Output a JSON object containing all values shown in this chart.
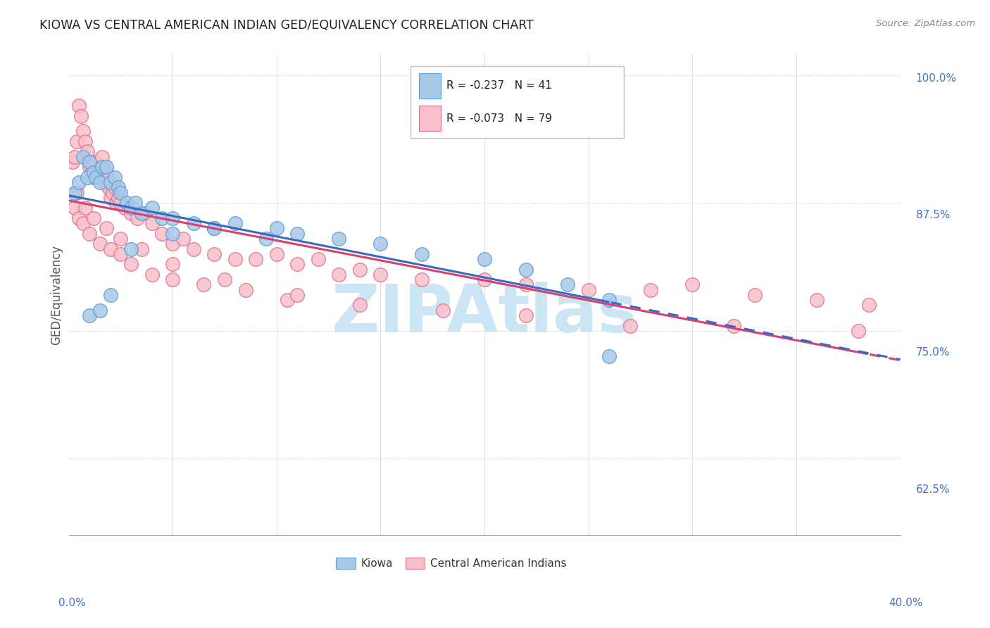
{
  "title": "KIOWA VS CENTRAL AMERICAN INDIAN GED/EQUIVALENCY CORRELATION CHART",
  "source": "Source: ZipAtlas.com",
  "legend_kiowa": "Kiowa",
  "legend_cai": "Central American Indians",
  "kiowa_r": "-0.237",
  "kiowa_n": "41",
  "cai_r": "-0.073",
  "cai_n": "79",
  "kiowa_color": "#a8c8e8",
  "kiowa_edge": "#5a9fd4",
  "cai_color": "#f9c0cb",
  "cai_edge": "#e07090",
  "kiowa_x": [
    0.3,
    0.5,
    0.7,
    0.9,
    1.0,
    1.2,
    1.3,
    1.5,
    1.6,
    1.8,
    2.0,
    2.2,
    2.4,
    2.5,
    2.8,
    3.0,
    3.2,
    3.5,
    4.0,
    4.5,
    5.0,
    6.0,
    7.0,
    8.0,
    9.5,
    11.0,
    13.0,
    15.0,
    17.0,
    20.0,
    22.0,
    24.0,
    26.0,
    1.0,
    1.5,
    2.0,
    3.0,
    5.0,
    7.0,
    10.0,
    26.0
  ],
  "kiowa_y": [
    88.5,
    89.5,
    92.0,
    90.0,
    91.5,
    90.5,
    90.0,
    89.5,
    91.0,
    91.0,
    89.5,
    90.0,
    89.0,
    88.5,
    87.5,
    87.0,
    87.5,
    86.5,
    87.0,
    86.0,
    86.0,
    85.5,
    85.0,
    85.5,
    84.0,
    84.5,
    84.0,
    83.5,
    82.5,
    82.0,
    81.0,
    79.5,
    78.0,
    76.5,
    77.0,
    78.5,
    83.0,
    84.5,
    85.0,
    85.0,
    72.5
  ],
  "cai_x": [
    0.2,
    0.3,
    0.4,
    0.5,
    0.6,
    0.7,
    0.8,
    0.9,
    1.0,
    1.1,
    1.2,
    1.3,
    1.4,
    1.5,
    1.6,
    1.7,
    1.8,
    1.9,
    2.0,
    2.1,
    2.2,
    2.3,
    2.4,
    2.5,
    2.7,
    3.0,
    3.3,
    3.6,
    4.0,
    4.5,
    5.0,
    5.5,
    6.0,
    7.0,
    8.0,
    9.0,
    10.0,
    11.0,
    12.0,
    13.0,
    14.0,
    15.0,
    17.0,
    20.0,
    22.0,
    25.0,
    28.0,
    30.0,
    33.0,
    36.0,
    38.5,
    0.3,
    0.5,
    0.7,
    1.0,
    1.5,
    2.0,
    2.5,
    3.0,
    4.0,
    5.0,
    6.5,
    8.5,
    10.5,
    14.0,
    18.0,
    22.0,
    27.0,
    32.0,
    38.0,
    0.4,
    0.8,
    1.2,
    1.8,
    2.5,
    3.5,
    5.0,
    7.5,
    11.0
  ],
  "cai_y": [
    91.5,
    92.0,
    93.5,
    97.0,
    96.0,
    94.5,
    93.5,
    92.5,
    91.0,
    90.5,
    90.0,
    91.5,
    90.0,
    91.0,
    92.0,
    89.5,
    90.5,
    89.0,
    88.0,
    88.5,
    89.0,
    87.5,
    88.0,
    87.5,
    87.0,
    86.5,
    86.0,
    86.5,
    85.5,
    84.5,
    83.5,
    84.0,
    83.0,
    82.5,
    82.0,
    82.0,
    82.5,
    81.5,
    82.0,
    80.5,
    81.0,
    80.5,
    80.0,
    80.0,
    79.5,
    79.0,
    79.0,
    79.5,
    78.5,
    78.0,
    77.5,
    87.0,
    86.0,
    85.5,
    84.5,
    83.5,
    83.0,
    82.5,
    81.5,
    80.5,
    80.0,
    79.5,
    79.0,
    78.0,
    77.5,
    77.0,
    76.5,
    75.5,
    75.5,
    75.0,
    88.5,
    87.0,
    86.0,
    85.0,
    84.0,
    83.0,
    81.5,
    80.0,
    78.5
  ],
  "xlim": [
    0.0,
    40.0
  ],
  "ylim": [
    55.0,
    102.0
  ],
  "yticks": [
    62.5,
    75.0,
    87.5,
    100.0
  ],
  "xticks_labels_x": [
    0.0,
    40.0
  ],
  "xticks_labels": [
    "0.0%",
    "40.0%"
  ],
  "yticks_labels": [
    "100.0%",
    "87.5%",
    "75.0%",
    "62.5%"
  ],
  "background": "#ffffff",
  "watermark": "ZIPAtlas",
  "watermark_color": "#cce5f5",
  "grid_color": "#e0e0e0",
  "axis_label_color": "#4472c4",
  "title_color": "#222222",
  "ylabel": "GED/Equivalency",
  "source_text": "Source: ZipAtlas.com",
  "line_blue": "#3a6abf",
  "line_pink": "#d94070"
}
